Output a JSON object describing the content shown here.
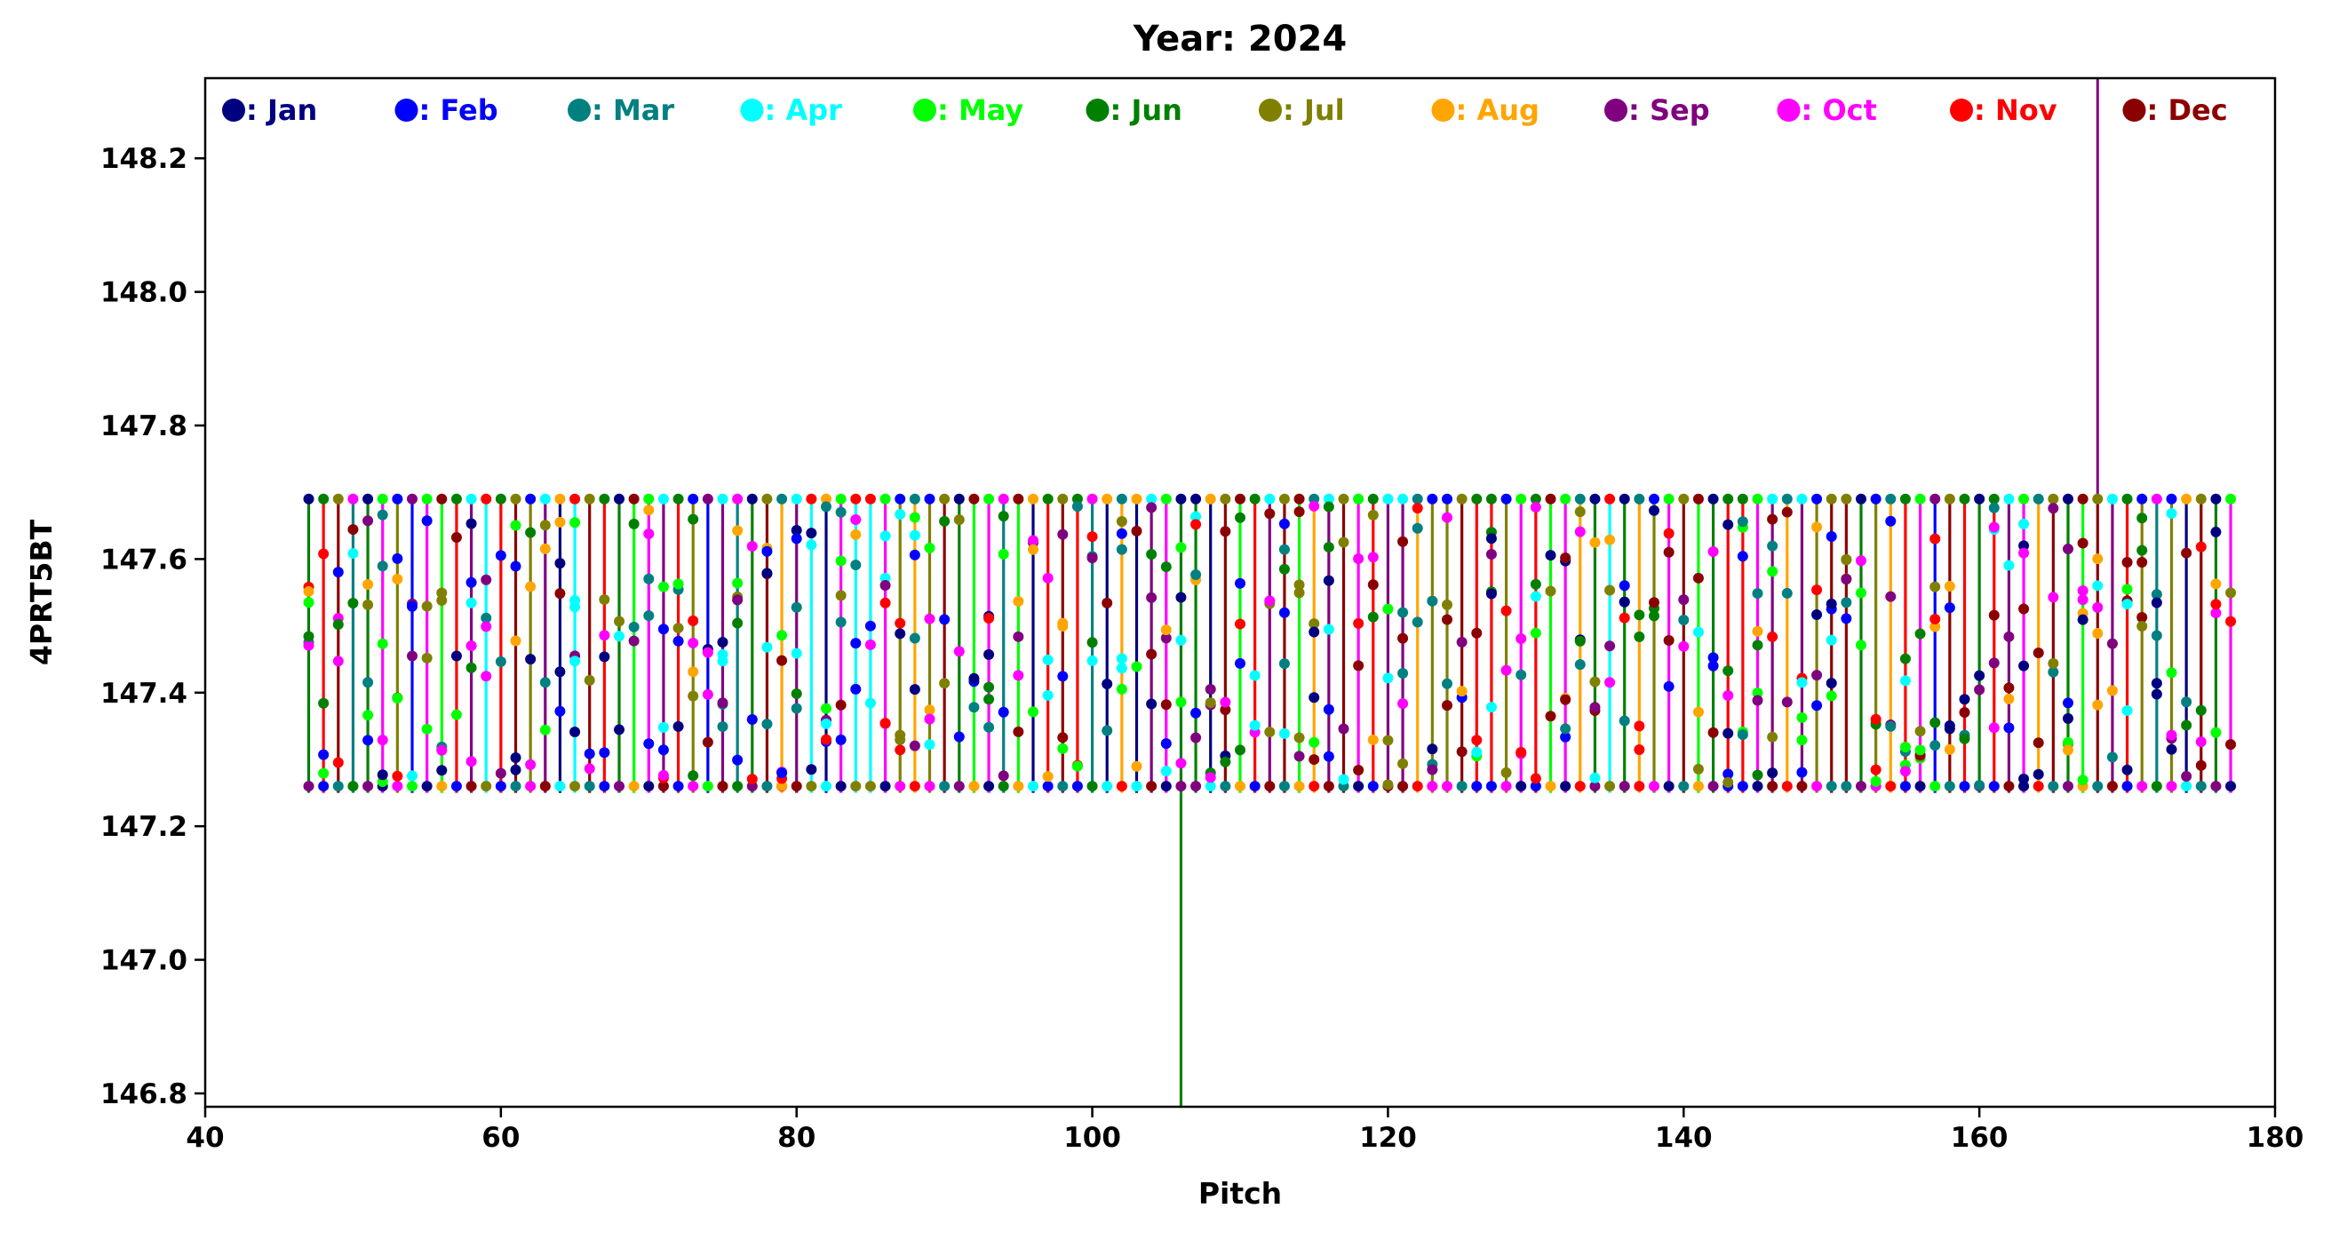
{
  "chart_data": {
    "type": "scatter",
    "title": "Year: 2024",
    "xlabel": "Pitch",
    "ylabel": "4PRT5BT",
    "xlim": [
      40,
      180
    ],
    "ylim": [
      146.78,
      148.32
    ],
    "xticks": [
      40,
      60,
      80,
      100,
      120,
      140,
      160,
      180
    ],
    "xtick_labels": [
      "40",
      "60",
      "80",
      "100",
      "120",
      "140",
      "160",
      "180"
    ],
    "yticks": [
      146.8,
      147.0,
      147.2,
      147.4,
      147.6,
      147.8,
      148.0,
      148.2
    ],
    "ytick_labels": [
      "146.8",
      "147.0",
      "147.2",
      "147.4",
      "147.6",
      "147.8",
      "148.0",
      "148.2"
    ],
    "grid": false,
    "legend_position": "top",
    "series": [
      {
        "name": "Jan",
        "color": "#000080"
      },
      {
        "name": "Feb",
        "color": "#0000ff"
      },
      {
        "name": "Mar",
        "color": "#008080"
      },
      {
        "name": "Apr",
        "color": "#00ffff"
      },
      {
        "name": "May",
        "color": "#00ff00"
      },
      {
        "name": "Jun",
        "color": "#008000"
      },
      {
        "name": "Jul",
        "color": "#808000"
      },
      {
        "name": "Aug",
        "color": "#ffa500"
      },
      {
        "name": "Sep",
        "color": "#800080"
      },
      {
        "name": "Oct",
        "color": "#ff00ff"
      },
      {
        "name": "Nov",
        "color": "#ff0000"
      },
      {
        "name": "Dec",
        "color": "#8b0000"
      }
    ],
    "stems": {
      "x_values": [
        47,
        48,
        49,
        50,
        51,
        52,
        53,
        54,
        55,
        56,
        57,
        58,
        59,
        60,
        61,
        62,
        63,
        64,
        65,
        66,
        67,
        68,
        69,
        70,
        71,
        72,
        73,
        74,
        75,
        76,
        77,
        78,
        79,
        80,
        81,
        82,
        83,
        84,
        85,
        86,
        87,
        88,
        89,
        90,
        91,
        92,
        93,
        94,
        95,
        96,
        97,
        98,
        99,
        100,
        101,
        102,
        103,
        104,
        105,
        106,
        107,
        108,
        109,
        110,
        111,
        112,
        113,
        114,
        115,
        116,
        117,
        118,
        119,
        120,
        121,
        122,
        123,
        124,
        125,
        126,
        127,
        128,
        129,
        130,
        131,
        132,
        133,
        134,
        135,
        136,
        137,
        138,
        139,
        140,
        141,
        142,
        143,
        144,
        145,
        146,
        147,
        148,
        149,
        150,
        151,
        152,
        153,
        154,
        155,
        156,
        157,
        158,
        159,
        160,
        161,
        162,
        163,
        164,
        165,
        166,
        167,
        168,
        169,
        170,
        171,
        172,
        173,
        174,
        175,
        176,
        177
      ],
      "bottom": 147.25,
      "top": 147.69,
      "month_index": [
        5,
        10,
        11,
        2,
        5,
        9,
        6,
        1,
        9,
        4,
        10,
        8,
        3,
        10,
        11,
        6,
        8,
        0,
        3,
        11,
        10,
        5,
        4,
        9,
        8,
        10,
        6,
        1,
        8,
        2,
        5,
        11,
        7,
        8,
        3,
        0,
        9,
        3,
        3,
        9,
        6,
        7,
        6,
        11,
        5,
        4,
        9,
        2,
        4,
        0,
        10,
        11,
        10,
        2,
        0,
        7,
        0,
        8,
        9,
        5,
        5,
        0,
        11,
        4,
        10,
        8,
        11,
        4,
        7,
        8,
        11,
        9,
        10,
        8,
        8,
        7,
        6,
        6,
        11,
        10,
        10,
        6,
        9,
        10,
        4,
        9,
        7,
        5,
        3,
        5,
        7,
        6,
        9,
        11,
        4,
        5,
        10,
        10,
        9,
        8,
        7,
        8,
        6,
        11,
        11,
        5,
        6,
        7,
        10,
        9,
        1,
        11,
        10,
        5,
        10,
        8,
        9,
        7,
        11,
        5,
        4,
        11,
        8,
        10,
        6,
        2,
        6,
        0,
        11,
        5,
        9
      ]
    }
  },
  "special_lines": [
    {
      "x": 106,
      "from": 147.25,
      "to": 146.78,
      "color": "#008000"
    },
    {
      "x": 168,
      "from": 147.69,
      "to": 148.32,
      "color": "#800080"
    }
  ]
}
